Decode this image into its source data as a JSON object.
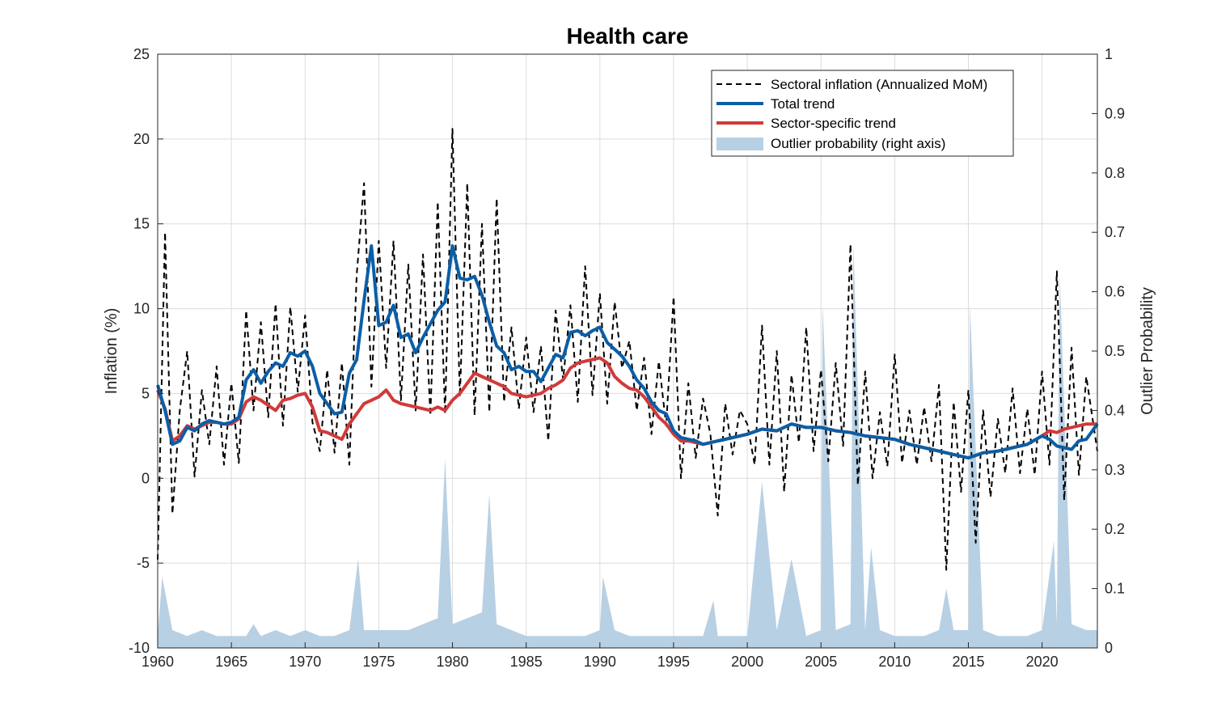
{
  "chart_data": {
    "type": "line",
    "title": "Health care",
    "ylabel": "Inflation (%)",
    "ylabel_right": "Outlier Probability",
    "xlim": [
      1960,
      2023.75
    ],
    "ylim": [
      -10,
      25
    ],
    "ylim_right": [
      0,
      1
    ],
    "x_ticks": [
      "1960",
      "1965",
      "1970",
      "1975",
      "1980",
      "1985",
      "1990",
      "1995",
      "2000",
      "2005",
      "2010",
      "2015",
      "2020"
    ],
    "y_ticks": [
      "-10",
      "-5",
      "0",
      "5",
      "10",
      "15",
      "20",
      "25"
    ],
    "y_ticks_right": [
      "0",
      "0.1",
      "0.2",
      "0.3",
      "0.4",
      "0.5",
      "0.6",
      "0.7",
      "0.8",
      "0.9",
      "1"
    ],
    "grid": true,
    "legend_position": "top-right",
    "colors": {
      "sectoral": "#000000",
      "total_trend": "#0b5ea6",
      "sector_trend": "#d13a3a",
      "outlier_fill": "#b8d0e4"
    },
    "series": [
      {
        "name": "Total trend",
        "x": [
          1960,
          1960.5,
          1961,
          1961.5,
          1962,
          1962.5,
          1963,
          1963.5,
          1964,
          1964.5,
          1965,
          1965.5,
          1966,
          1966.5,
          1967,
          1967.5,
          1968,
          1968.5,
          1969,
          1969.5,
          1970,
          1970.5,
          1971,
          1971.5,
          1972,
          1972.5,
          1973,
          1973.5,
          1974,
          1974.5,
          1975,
          1975.5,
          1976,
          1976.5,
          1977,
          1977.5,
          1978,
          1978.5,
          1979,
          1979.5,
          1980,
          1980.5,
          1981,
          1981.5,
          1982,
          1982.5,
          1983,
          1983.5,
          1984,
          1984.5,
          1985,
          1985.5,
          1986,
          1986.5,
          1987,
          1987.5,
          1988,
          1988.5,
          1989,
          1989.5,
          1990,
          1990.5,
          1991,
          1991.5,
          1992,
          1992.5,
          1993,
          1993.5,
          1994,
          1994.5,
          1995,
          1995.5,
          1996,
          1996.5,
          1997,
          1998,
          1999,
          2000,
          2001,
          2002,
          2003,
          2004,
          2005,
          2006,
          2007,
          2008,
          2009,
          2010,
          2011,
          2012,
          2013,
          2014,
          2015,
          2016,
          2017,
          2018,
          2019,
          2020,
          2020.5,
          2021,
          2021.5,
          2022,
          2022.5,
          2023,
          2023.75
        ],
        "values": [
          5.5,
          4.0,
          2.0,
          2.2,
          3.0,
          2.8,
          3.2,
          3.4,
          3.3,
          3.2,
          3.3,
          3.6,
          5.8,
          6.4,
          5.6,
          6.3,
          6.8,
          6.6,
          7.4,
          7.2,
          7.5,
          6.6,
          5.0,
          4.4,
          3.8,
          3.9,
          6.2,
          7.0,
          10.5,
          13.7,
          9.0,
          9.2,
          10.2,
          8.3,
          8.5,
          7.4,
          8.3,
          9.1,
          9.9,
          10.4,
          13.7,
          11.8,
          11.7,
          11.9,
          10.8,
          9.2,
          7.8,
          7.4,
          6.4,
          6.6,
          6.3,
          6.3,
          5.7,
          6.5,
          7.3,
          7.1,
          8.6,
          8.7,
          8.4,
          8.7,
          8.9,
          8.0,
          7.6,
          7.2,
          6.6,
          5.8,
          5.3,
          4.5,
          4.0,
          3.8,
          2.8,
          2.4,
          2.3,
          2.2,
          2.0,
          2.2,
          2.4,
          2.6,
          2.9,
          2.8,
          3.2,
          3.0,
          3.0,
          2.8,
          2.7,
          2.5,
          2.4,
          2.3,
          2.0,
          1.8,
          1.6,
          1.4,
          1.2,
          1.5,
          1.6,
          1.8,
          2.0,
          2.5,
          2.3,
          1.9,
          1.8,
          1.7,
          2.2,
          2.3,
          3.2
        ]
      },
      {
        "name": "Sector-specific trend",
        "x": [
          1960,
          1960.5,
          1961,
          1961.5,
          1962,
          1962.5,
          1963,
          1963.5,
          1964,
          1964.5,
          1965,
          1965.5,
          1966,
          1966.5,
          1967,
          1967.5,
          1968,
          1968.5,
          1969,
          1969.5,
          1970,
          1970.5,
          1971,
          1971.5,
          1972,
          1972.5,
          1973,
          1973.5,
          1974,
          1974.5,
          1975,
          1975.5,
          1976,
          1976.5,
          1977,
          1977.5,
          1978,
          1978.5,
          1979,
          1979.5,
          1980,
          1980.5,
          1981,
          1981.5,
          1982,
          1982.5,
          1983,
          1983.5,
          1984,
          1984.5,
          1985,
          1985.5,
          1986,
          1986.5,
          1987,
          1987.5,
          1988,
          1988.5,
          1989,
          1989.5,
          1990,
          1990.5,
          1991,
          1991.5,
          1992,
          1992.5,
          1993,
          1993.5,
          1994,
          1994.5,
          1995,
          1995.5,
          1996,
          1996.5,
          1997,
          1998,
          1999,
          2000,
          2001,
          2002,
          2003,
          2004,
          2005,
          2006,
          2007,
          2008,
          2009,
          2010,
          2011,
          2012,
          2013,
          2014,
          2015,
          2016,
          2017,
          2018,
          2019,
          2020,
          2020.5,
          2021,
          2021.5,
          2022,
          2022.5,
          2023,
          2023.75
        ],
        "values": [
          5.2,
          4.1,
          2.2,
          2.5,
          3.1,
          2.9,
          3.1,
          3.3,
          3.3,
          3.2,
          3.2,
          3.5,
          4.5,
          4.8,
          4.6,
          4.3,
          4.0,
          4.6,
          4.7,
          4.9,
          5.0,
          4.2,
          2.8,
          2.7,
          2.5,
          2.3,
          3.2,
          3.8,
          4.4,
          4.6,
          4.8,
          5.2,
          4.6,
          4.4,
          4.3,
          4.2,
          4.1,
          4.0,
          4.2,
          4.0,
          4.6,
          5.0,
          5.6,
          6.2,
          6.0,
          5.8,
          5.6,
          5.4,
          5.0,
          4.9,
          4.8,
          4.9,
          5.0,
          5.3,
          5.5,
          5.8,
          6.5,
          6.8,
          6.9,
          7.0,
          7.1,
          6.8,
          6.0,
          5.6,
          5.3,
          5.2,
          4.8,
          4.2,
          3.6,
          3.2,
          2.6,
          2.2,
          2.2,
          2.1,
          2.0,
          2.2,
          2.4,
          2.6,
          2.9,
          2.8,
          3.2,
          3.0,
          3.0,
          2.8,
          2.7,
          2.5,
          2.4,
          2.3,
          2.0,
          1.8,
          1.6,
          1.4,
          1.2,
          1.5,
          1.6,
          1.8,
          2.0,
          2.5,
          2.8,
          2.7,
          2.9,
          3.0,
          3.1,
          3.2,
          3.2
        ]
      },
      {
        "name": "Sectoral inflation (Annualized MoM)",
        "x": [
          1960,
          1960.5,
          1961,
          1961.5,
          1962,
          1962.5,
          1963,
          1963.5,
          1964,
          1964.5,
          1965,
          1965.5,
          1966,
          1966.5,
          1967,
          1967.5,
          1968,
          1968.5,
          1969,
          1969.5,
          1970,
          1970.5,
          1971,
          1971.5,
          1972,
          1972.5,
          1973,
          1973.5,
          1974,
          1974.5,
          1975,
          1975.5,
          1976,
          1976.5,
          1977,
          1977.5,
          1978,
          1978.5,
          1979,
          1979.5,
          1980,
          1980.5,
          1981,
          1981.5,
          1982,
          1982.5,
          1983,
          1983.5,
          1984,
          1984.5,
          1985,
          1985.5,
          1986,
          1986.5,
          1987,
          1987.5,
          1988,
          1988.5,
          1989,
          1989.5,
          1990,
          1990.5,
          1991,
          1991.5,
          1992,
          1992.5,
          1993,
          1993.5,
          1994,
          1994.5,
          1995,
          1995.5,
          1996,
          1996.5,
          1997,
          1997.5,
          1998,
          1998.5,
          1999,
          1999.5,
          2000,
          2000.5,
          2001,
          2001.5,
          2002,
          2002.5,
          2003,
          2003.5,
          2004,
          2004.5,
          2005,
          2005.5,
          2006,
          2006.5,
          2007,
          2007.5,
          2008,
          2008.5,
          2009,
          2009.5,
          2010,
          2010.5,
          2011,
          2011.5,
          2012,
          2012.5,
          2013,
          2013.5,
          2014,
          2014.5,
          2015,
          2015.5,
          2016,
          2016.5,
          2017,
          2017.5,
          2018,
          2018.5,
          2019,
          2019.5,
          2020,
          2020.5,
          2021,
          2021.5,
          2022,
          2022.5,
          2023,
          2023.75
        ],
        "values": [
          -4.8,
          14.5,
          -2.1,
          4.0,
          7.5,
          0.1,
          5.2,
          2.0,
          6.6,
          0.8,
          5.6,
          0.9,
          9.9,
          4.0,
          9.2,
          3.6,
          10.3,
          3.1,
          10.1,
          5.1,
          9.6,
          3.3,
          1.6,
          6.4,
          1.5,
          6.8,
          0.8,
          12.0,
          17.4,
          5.4,
          14.0,
          6.5,
          14.0,
          4.6,
          12.6,
          4.0,
          13.2,
          3.7,
          16.3,
          3.8,
          20.6,
          4.8,
          17.4,
          3.7,
          15.0,
          3.9,
          16.5,
          4.5,
          8.9,
          4.1,
          8.3,
          3.9,
          7.8,
          2.2,
          9.9,
          5.8,
          10.2,
          4.5,
          12.5,
          4.9,
          10.9,
          4.4,
          10.4,
          6.5,
          8.1,
          4.0,
          7.1,
          2.6,
          6.9,
          3.1,
          10.7,
          0.0,
          5.6,
          1.2,
          4.7,
          2.6,
          -2.2,
          4.4,
          1.4,
          4.0,
          3.2,
          0.8,
          9.0,
          0.8,
          7.5,
          -0.8,
          6.1,
          2.1,
          8.9,
          1.6,
          6.4,
          1.0,
          6.8,
          1.9,
          13.8,
          -0.4,
          6.3,
          0.0,
          3.9,
          0.7,
          7.3,
          0.9,
          4.0,
          0.8,
          4.2,
          1.0,
          5.5,
          -5.4,
          4.5,
          -0.8,
          5.2,
          -3.8,
          4.0,
          -1.1,
          3.5,
          0.3,
          5.3,
          0.3,
          4.1,
          0.2,
          6.3,
          0.8,
          12.2,
          -1.3,
          7.7,
          0.2,
          6.0,
          1.6
        ]
      }
    ],
    "outlier_probability": {
      "name": "Outlier probability (right axis)",
      "x": [
        1960,
        1960.3,
        1961,
        1962,
        1963,
        1964,
        1965,
        1966,
        1966.5,
        1967,
        1968,
        1969,
        1970,
        1971,
        1972,
        1973,
        1973.6,
        1974,
        1975,
        1976,
        1977,
        1978,
        1979,
        1979.5,
        1980,
        1981,
        1982,
        1982.5,
        1983,
        1984,
        1985,
        1986,
        1987,
        1988,
        1989,
        1990,
        1990.2,
        1991,
        1992,
        1993,
        1994,
        1995,
        1996,
        1997,
        1997.7,
        1998,
        1999,
        2000,
        2001,
        2002,
        2003,
        2004,
        2005,
        2005.1,
        2006,
        2007,
        2007.2,
        2008,
        2008.4,
        2009,
        2010,
        2011,
        2012,
        2013,
        2013.5,
        2014,
        2015,
        2015.1,
        2016,
        2017,
        2018,
        2019,
        2020,
        2020.8,
        2021,
        2021.2,
        2022,
        2023,
        2023.75
      ],
      "values": [
        0.02,
        0.12,
        0.03,
        0.02,
        0.03,
        0.02,
        0.02,
        0.02,
        0.04,
        0.02,
        0.03,
        0.02,
        0.03,
        0.02,
        0.02,
        0.03,
        0.15,
        0.03,
        0.03,
        0.03,
        0.03,
        0.04,
        0.05,
        0.32,
        0.04,
        0.05,
        0.06,
        0.26,
        0.04,
        0.03,
        0.02,
        0.02,
        0.02,
        0.02,
        0.02,
        0.03,
        0.12,
        0.03,
        0.02,
        0.02,
        0.02,
        0.02,
        0.02,
        0.02,
        0.08,
        0.02,
        0.02,
        0.02,
        0.28,
        0.03,
        0.15,
        0.02,
        0.03,
        0.58,
        0.03,
        0.04,
        0.68,
        0.03,
        0.17,
        0.03,
        0.02,
        0.02,
        0.02,
        0.03,
        0.1,
        0.03,
        0.03,
        0.58,
        0.03,
        0.02,
        0.02,
        0.02,
        0.03,
        0.18,
        0.04,
        0.63,
        0.04,
        0.03,
        0.03
      ]
    }
  }
}
